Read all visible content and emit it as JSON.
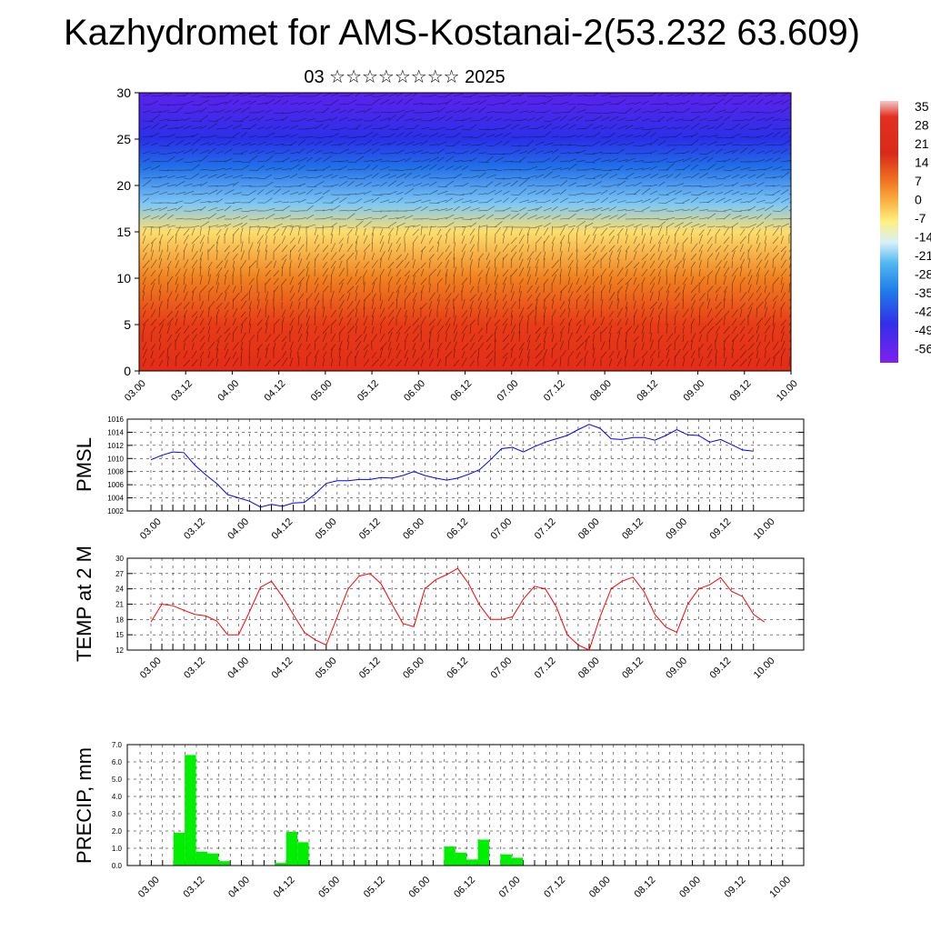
{
  "header": {
    "title": "Kazhydromet for AMS-Kostanai-2(53.232 63.609)",
    "subtitle": "03 ☆☆☆☆☆☆☆☆ 2025"
  },
  "x_tick_labels": [
    "03.00",
    "03.12",
    "04.00",
    "04.12",
    "05.00",
    "05.12",
    "06.00",
    "06.12",
    "07.00",
    "07.12",
    "08.00",
    "08.12",
    "09.00",
    "09.12",
    "10.00"
  ],
  "colorbar": {
    "labels": [
      "35",
      "28",
      "21",
      "14",
      "7",
      "0",
      "-7",
      "-14",
      "-21",
      "-28",
      "-35",
      "-42",
      "-49",
      "-56"
    ]
  },
  "colors": {
    "pmsl_line": "#0000ff",
    "temp_line": "#ff0000",
    "precip_bar": "#00ee00"
  },
  "chart_data": [
    {
      "type": "heatmap",
      "title": "",
      "xlabel": "",
      "ylabel": "",
      "ylim": [
        0,
        30
      ],
      "y_ticks": [
        0,
        5,
        10,
        15,
        20,
        25,
        30
      ],
      "x": [
        "03.00",
        "03.12",
        "04.00",
        "04.12",
        "05.00",
        "05.12",
        "06.00",
        "06.12",
        "07.00",
        "07.12",
        "08.00",
        "08.12",
        "09.00",
        "09.12",
        "10.00"
      ],
      "value_range": [
        -56,
        35
      ],
      "approx_profile": [
        {
          "level": 0,
          "value": 21
        },
        {
          "level": 5,
          "value": 17
        },
        {
          "level": 10,
          "value": 8
        },
        {
          "level": 15,
          "value": -5
        },
        {
          "level": 18,
          "value": -20
        },
        {
          "level": 22,
          "value": -35
        },
        {
          "level": 25,
          "value": -44
        },
        {
          "level": 30,
          "value": -52
        }
      ],
      "overlay": "wind barbs"
    },
    {
      "type": "line",
      "ylabel": "PMSL",
      "ylim": [
        1002,
        1016
      ],
      "y_ticks": [
        1002,
        1004,
        1006,
        1008,
        1010,
        1012,
        1014,
        1016
      ],
      "x_steps_3h": [
        0,
        1,
        2,
        3,
        4,
        5,
        6,
        7,
        8,
        9,
        10,
        11,
        12,
        13,
        14,
        15,
        16,
        17,
        18,
        19,
        20,
        21,
        22,
        23,
        24,
        25,
        26,
        27,
        28,
        29,
        30,
        31,
        32,
        33,
        34,
        35,
        36,
        37,
        38,
        39,
        40,
        41,
        42,
        43,
        44,
        45,
        46,
        47,
        48,
        49,
        50,
        51,
        52,
        53,
        54,
        55
      ],
      "series": [
        {
          "values": [
            1009.8,
            1010.5,
            1011.0,
            1010.9,
            1009.0,
            1007.5,
            1006.2,
            1004.5,
            1004.0,
            1003.5,
            1002.6,
            1003.0,
            1002.7,
            1003.2,
            1003.3,
            1004.6,
            1006.2,
            1006.6,
            1006.6,
            1006.8,
            1006.8,
            1007.1,
            1007.0,
            1007.4,
            1008.0,
            1007.4,
            1007.0,
            1006.7,
            1007.0,
            1007.6,
            1008.3,
            1009.8,
            1011.5,
            1011.7,
            1011.0,
            1011.8,
            1012.5,
            1013.0,
            1013.5,
            1014.4,
            1015.2,
            1014.6,
            1013.0,
            1012.9,
            1013.2,
            1013.2,
            1012.8,
            1013.5,
            1014.4,
            1013.6,
            1013.5,
            1012.5,
            1012.9,
            1012.1,
            1011.3,
            1011.1
          ]
        }
      ]
    },
    {
      "type": "line",
      "ylabel": "TEMP at 2 M",
      "ylim": [
        12,
        30
      ],
      "y_ticks": [
        12,
        15,
        18,
        21,
        24,
        27,
        30
      ],
      "series": [
        {
          "values": [
            17.5,
            21.0,
            20.7,
            19.8,
            19.0,
            18.7,
            17.7,
            15.0,
            15.0,
            19.5,
            24.3,
            25.5,
            22.5,
            19.0,
            15.5,
            14.0,
            13.0,
            18.5,
            24.0,
            26.5,
            27.0,
            25.0,
            21.0,
            17.2,
            16.6,
            24.0,
            25.8,
            26.8,
            28.0,
            25.0,
            20.8,
            18.0,
            18.0,
            18.5,
            22.0,
            24.5,
            24.0,
            20.5,
            15.0,
            13.0,
            12.0,
            18.5,
            24.0,
            25.5,
            26.3,
            23.5,
            19.0,
            16.5,
            15.5,
            21.0,
            24.0,
            24.8,
            26.2,
            23.5,
            22.5,
            19.0,
            17.5
          ]
        }
      ]
    },
    {
      "type": "bar",
      "ylabel": "PRECIP, mm",
      "ylim": [
        0,
        7
      ],
      "y_ticks": [
        "0.0",
        "1.0",
        "2.0",
        "3.0",
        "4.0",
        "5.0",
        "6.0",
        "7.0"
      ],
      "values": [
        0,
        0,
        1.9,
        6.4,
        0.8,
        0.7,
        0.25,
        0,
        0,
        0,
        0,
        0.15,
        1.95,
        1.35,
        0,
        0,
        0,
        0,
        0,
        0,
        0,
        0,
        0,
        0,
        0,
        0,
        1.1,
        0.75,
        0.35,
        1.5,
        0,
        0.65,
        0.45,
        0,
        0,
        0,
        0,
        0,
        0,
        0,
        0,
        0,
        0,
        0,
        0,
        0,
        0,
        0,
        0,
        0,
        0,
        0,
        0,
        0,
        0,
        0,
        0
      ]
    }
  ]
}
